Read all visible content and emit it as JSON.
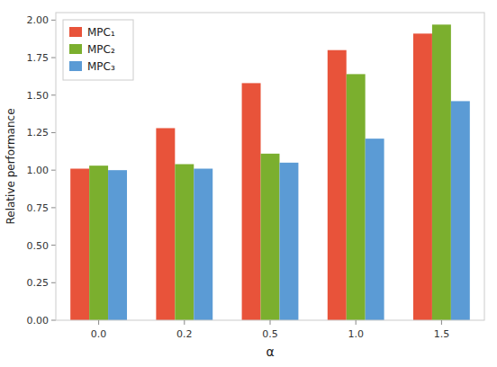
{
  "chart_data": {
    "type": "bar",
    "x_label": "α",
    "y_label": "Relative performance",
    "categories": [
      "0.0",
      "0.2",
      "0.5",
      "1.0",
      "1.5"
    ],
    "series": [
      {
        "name": "MPC₁",
        "color": "#E8533A",
        "values": [
          1.01,
          1.28,
          1.58,
          1.8,
          1.91
        ]
      },
      {
        "name": "MPC₂",
        "color": "#7BAF2E",
        "values": [
          1.03,
          1.04,
          1.11,
          1.64,
          1.97
        ]
      },
      {
        "name": "MPC₃",
        "color": "#5B9BD5",
        "values": [
          1.0,
          1.01,
          1.05,
          1.21,
          1.46
        ]
      }
    ],
    "ylim": [
      0.0,
      2.05
    ],
    "yticks": [
      {
        "value": 0.0,
        "label": "0.00"
      },
      0.25,
      {
        "value": 0.5,
        "label": "0.50"
      },
      0.75,
      {
        "value": 1.0,
        "label": "1.00"
      },
      1.25,
      {
        "value": 1.5,
        "label": "1.50"
      },
      1.75,
      {
        "value": 2.0,
        "label": "2.00"
      }
    ],
    "legend": "upper-left",
    "grid": false
  }
}
